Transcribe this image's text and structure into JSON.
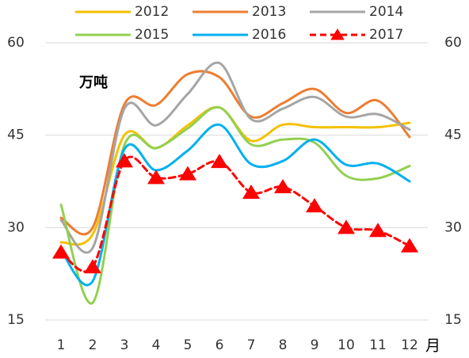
{
  "chart_data": {
    "type": "line",
    "ylabel": "万吨",
    "xlabel": "月",
    "categories": [
      "1",
      "2",
      "3",
      "4",
      "5",
      "6",
      "7",
      "8",
      "9",
      "10",
      "11",
      "12"
    ],
    "series": [
      {
        "name": "2012",
        "color": "#f5c000",
        "values": [
          27.6,
          28.9,
          45,
          42.9,
          46.6,
          49.5,
          44.1,
          46.7,
          46.3,
          46.3,
          46.3,
          47
        ]
      },
      {
        "name": "2013",
        "color": "#ed7d31",
        "values": [
          31.6,
          30,
          50,
          49.9,
          54.9,
          54.4,
          48,
          50.2,
          52.5,
          48.6,
          50.6,
          44.7
        ]
      },
      {
        "name": "2014",
        "color": "#a5a5a5",
        "values": [
          31.2,
          26.7,
          49.3,
          46.6,
          51.7,
          56.7,
          47.6,
          49.3,
          51.2,
          48,
          48.4,
          45.9
        ]
      },
      {
        "name": "2015",
        "color": "#92d050",
        "values": [
          33.7,
          17.8,
          43.4,
          42.9,
          46.1,
          49.5,
          43.5,
          44.3,
          43.8,
          38.4,
          38,
          40
        ]
      },
      {
        "name": "2016",
        "color": "#00b0f0",
        "values": [
          26.3,
          21.3,
          42.7,
          39.3,
          42.5,
          46.7,
          40.3,
          40.8,
          44.3,
          40.2,
          40.4,
          37.5
        ]
      },
      {
        "name": "2017",
        "color": "#ff0000",
        "dashed": true,
        "marker": "triangle",
        "values": [
          26,
          23.6,
          40.8,
          38.1,
          38.7,
          40.7,
          35.7,
          36.6,
          33.5,
          30,
          29.5,
          27
        ]
      }
    ],
    "ylim": [
      15,
      60
    ],
    "yticks": [
      15,
      30,
      45,
      60
    ],
    "secondary_ytick_labels": true,
    "grid": true
  }
}
